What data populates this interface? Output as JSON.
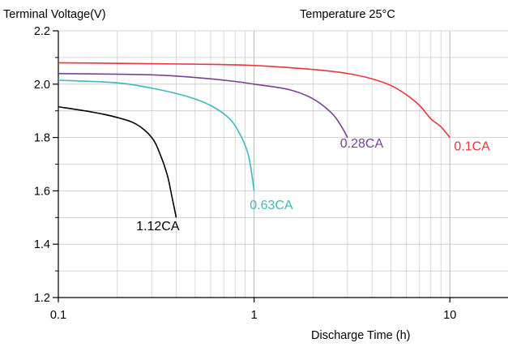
{
  "chart_data": {
    "type": "line",
    "title": "Temperature 25°C",
    "ylabel": "Terminal Voltage(V)",
    "xlabel": "Discharge Time (h)",
    "x_scale": "log",
    "xlim": [
      0.1,
      20
    ],
    "ylim": [
      1.2,
      2.2
    ],
    "grid": true,
    "x_tick_labels": [
      {
        "value": 0.1,
        "label": "0.1"
      },
      {
        "value": 1,
        "label": "1"
      },
      {
        "value": 10,
        "label": "10"
      }
    ],
    "y_tick_labels": [
      {
        "value": 1.2,
        "label": "1.2"
      },
      {
        "value": 1.4,
        "label": "1.4"
      },
      {
        "value": 1.6,
        "label": "1.6"
      },
      {
        "value": 1.8,
        "label": "1.8"
      },
      {
        "value": 2.0,
        "label": "2.0"
      },
      {
        "value": 2.2,
        "label": "2.2"
      }
    ],
    "series": [
      {
        "name": "0.1CA",
        "color": "#e8363d",
        "points": [
          [
            0.1,
            2.08
          ],
          [
            0.5,
            2.075
          ],
          [
            1,
            2.07
          ],
          [
            2,
            2.055
          ],
          [
            3,
            2.04
          ],
          [
            4,
            2.02
          ],
          [
            5,
            1.995
          ],
          [
            6,
            1.96
          ],
          [
            7,
            1.92
          ],
          [
            8,
            1.87
          ],
          [
            9,
            1.84
          ],
          [
            10,
            1.8
          ]
        ]
      },
      {
        "name": "0.28CA",
        "color": "#7b3f93",
        "points": [
          [
            0.1,
            2.04
          ],
          [
            0.3,
            2.035
          ],
          [
            0.5,
            2.025
          ],
          [
            0.8,
            2.01
          ],
          [
            1,
            2.0
          ],
          [
            1.5,
            1.98
          ],
          [
            2,
            1.945
          ],
          [
            2.5,
            1.89
          ],
          [
            2.8,
            1.84
          ],
          [
            3,
            1.8
          ]
        ]
      },
      {
        "name": "0.63CA",
        "color": "#3fb8bd",
        "points": [
          [
            0.1,
            2.015
          ],
          [
            0.2,
            2.005
          ],
          [
            0.3,
            1.985
          ],
          [
            0.45,
            1.955
          ],
          [
            0.6,
            1.92
          ],
          [
            0.75,
            1.87
          ],
          [
            0.85,
            1.81
          ],
          [
            0.93,
            1.74
          ],
          [
            0.97,
            1.67
          ],
          [
            1,
            1.6
          ]
        ]
      },
      {
        "name": "1.12CA",
        "color": "#000000",
        "points": [
          [
            0.1,
            1.915
          ],
          [
            0.15,
            1.895
          ],
          [
            0.2,
            1.875
          ],
          [
            0.25,
            1.85
          ],
          [
            0.3,
            1.8
          ],
          [
            0.33,
            1.74
          ],
          [
            0.36,
            1.66
          ],
          [
            0.38,
            1.58
          ],
          [
            0.4,
            1.5
          ]
        ]
      }
    ],
    "series_labels": [
      {
        "series": "0.1CA",
        "x": 10.5,
        "y": 1.77,
        "color": "#e8363d"
      },
      {
        "series": "0.28CA",
        "x": 2.75,
        "y": 1.78,
        "color": "#7b3f93"
      },
      {
        "series": "0.63CA",
        "x": 0.95,
        "y": 1.55,
        "color": "#3fb8bd"
      },
      {
        "series": "1.12CA",
        "x": 0.25,
        "y": 1.47,
        "color": "#000000"
      }
    ]
  }
}
